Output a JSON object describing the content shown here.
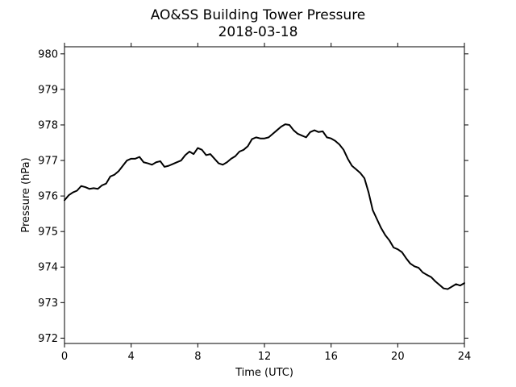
{
  "chart_data": {
    "type": "line",
    "title": "AO&SS Building Tower Pressure",
    "subtitle": "2018-03-18",
    "xlabel": "Time (UTC)",
    "ylabel": "Pressure (hPa)",
    "xlim": [
      0,
      24
    ],
    "ylim": [
      971.85,
      980.2
    ],
    "xticks": [
      0,
      4,
      8,
      12,
      16,
      20,
      24
    ],
    "yticks": [
      972,
      973,
      974,
      975,
      976,
      977,
      978,
      979,
      980
    ],
    "grid": false,
    "line_color": "#000000",
    "series": [
      {
        "x": [
          0,
          0.25,
          0.5,
          0.75,
          1.0,
          1.25,
          1.5,
          1.75,
          2.0,
          2.25,
          2.5,
          2.75,
          3.0,
          3.25,
          3.5,
          3.75,
          4.0,
          4.25,
          4.5,
          4.75,
          5.0,
          5.25,
          5.5,
          5.75,
          6.0,
          6.25,
          6.5,
          6.75,
          7.0,
          7.25,
          7.5,
          7.75,
          8.0,
          8.25,
          8.5,
          8.75,
          9.0,
          9.25,
          9.5,
          9.75,
          10.0,
          10.25,
          10.5,
          10.75,
          11.0,
          11.25,
          11.5,
          11.75,
          12.0,
          12.25,
          12.5,
          12.75,
          13.0,
          13.25,
          13.5,
          13.75,
          14.0,
          14.25,
          14.5,
          14.75,
          15.0,
          15.25,
          15.5,
          15.75,
          16.0,
          16.25,
          16.5,
          16.75,
          17.0,
          17.25,
          17.5,
          17.75,
          18.0,
          18.25,
          18.5,
          18.75,
          19.0,
          19.25,
          19.5,
          19.75,
          20.0,
          20.25,
          20.5,
          20.75,
          21.0,
          21.25,
          21.5,
          21.75,
          22.0,
          22.25,
          22.5,
          22.75,
          23.0,
          23.25,
          23.5,
          23.75,
          24.0
        ],
        "y": [
          975.88,
          976.02,
          976.1,
          976.15,
          976.28,
          976.25,
          976.2,
          976.22,
          976.2,
          976.3,
          976.35,
          976.55,
          976.6,
          976.7,
          976.85,
          977.0,
          977.05,
          977.05,
          977.1,
          976.95,
          976.92,
          976.88,
          976.95,
          976.98,
          976.82,
          976.85,
          976.9,
          976.95,
          977.0,
          977.15,
          977.25,
          977.18,
          977.35,
          977.3,
          977.15,
          977.18,
          977.05,
          976.92,
          976.88,
          976.95,
          977.05,
          977.12,
          977.25,
          977.3,
          977.4,
          977.6,
          977.65,
          977.62,
          977.62,
          977.65,
          977.75,
          977.85,
          977.95,
          978.02,
          978.0,
          977.85,
          977.75,
          977.7,
          977.65,
          977.8,
          977.85,
          977.8,
          977.82,
          977.65,
          977.62,
          977.55,
          977.45,
          977.3,
          977.05,
          976.85,
          976.75,
          976.65,
          976.5,
          976.1,
          975.6,
          975.35,
          975.1,
          974.9,
          974.75,
          974.55,
          974.5,
          974.42,
          974.25,
          974.1,
          974.02,
          973.98,
          973.85,
          973.78,
          973.72,
          973.6,
          973.5,
          973.4,
          973.38,
          973.45,
          973.52,
          973.48,
          973.55
        ]
      }
    ]
  }
}
